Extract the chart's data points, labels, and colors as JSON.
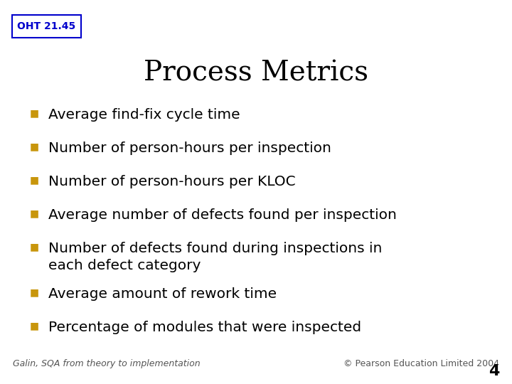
{
  "title": "Process Metrics",
  "oht_label": "OHT 21.45",
  "bullet_color": "#C8960C",
  "title_color": "#000000",
  "oht_text_color": "#0000CC",
  "oht_box_color": "#0000CC",
  "background_color": "#FFFFFF",
  "bullet_items": [
    "Average find-fix cycle time",
    "Number of person-hours per inspection",
    "Number of person-hours per KLOC",
    "Average number of defects found per inspection",
    "Number of defects found during inspections in\neach defect category",
    "Average amount of rework time",
    "Percentage of modules that were inspected"
  ],
  "footer_left": "Galin, SQA from theory to implementation",
  "footer_right": "© Pearson Education Limited 2004",
  "page_number": "4",
  "title_fontsize": 28,
  "bullet_fontsize": 14.5,
  "footer_fontsize": 9,
  "oht_fontsize": 10,
  "page_num_fontsize": 16
}
